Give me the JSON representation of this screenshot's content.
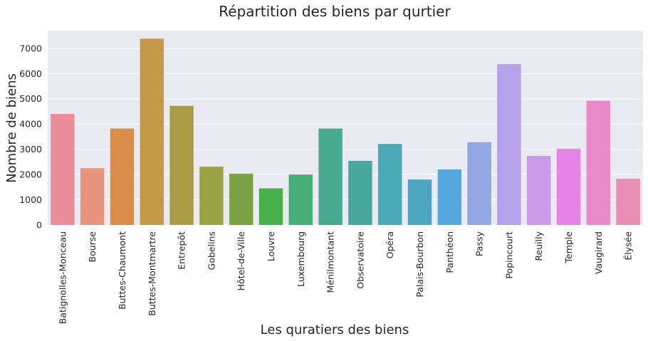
{
  "chart_data": {
    "type": "bar",
    "title": "Répartition des biens par qurtier",
    "xlabel": "Les quratiers des biens",
    "ylabel": "Nombre de biens",
    "ylim": [
      0,
      7700
    ],
    "yticks": [
      0,
      1000,
      2000,
      3000,
      4000,
      5000,
      6000,
      7000
    ],
    "grid": true,
    "categories": [
      "Batignolles-Monceau",
      "Bourse",
      "Buttes-Chaumont",
      "Buttes-Montmartre",
      "Entrepôt",
      "Gobelins",
      "Hôtel-de-Ville",
      "Louvre",
      "Luxembourg",
      "Ménilmontant",
      "Observatoire",
      "Opéra",
      "Palais-Bourbon",
      "Panthéon",
      "Passy",
      "Popincourt",
      "Reuilly",
      "Temple",
      "Vaugirard",
      "Élysée"
    ],
    "values": [
      4400,
      2250,
      3820,
      7380,
      4720,
      2310,
      2030,
      1450,
      2000,
      3820,
      2540,
      3210,
      1800,
      2200,
      3280,
      6370,
      2740,
      3020,
      4920,
      1830
    ],
    "colors": [
      "#ea8e9b",
      "#e8957f",
      "#db8e48",
      "#c49a4a",
      "#a99c45",
      "#9aa343",
      "#7aa344",
      "#48b04a",
      "#47ae7a",
      "#48ab8f",
      "#48a89f",
      "#4aaab5",
      "#4ba6c0",
      "#55a7e0",
      "#91a8e5",
      "#b6a2ea",
      "#cb9be8",
      "#e782e7",
      "#e889c8",
      "#e88eb5"
    ]
  }
}
